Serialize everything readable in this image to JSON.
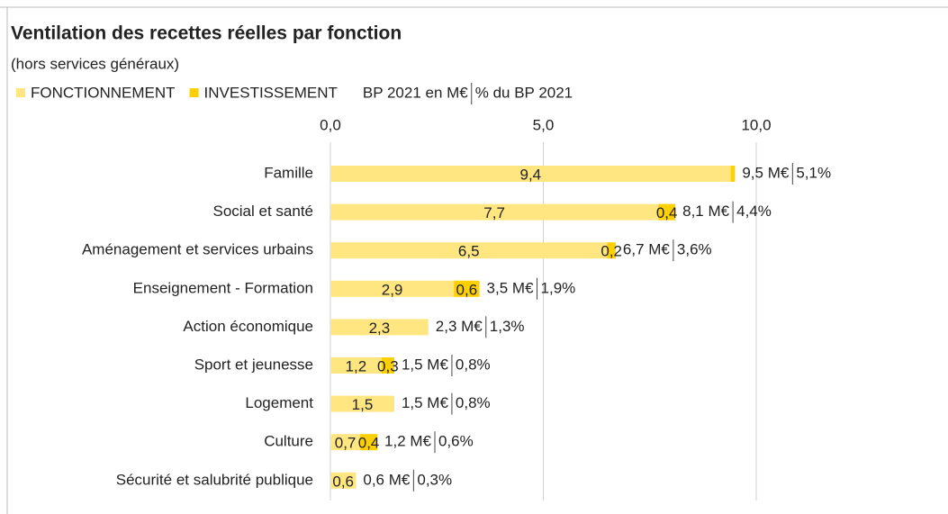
{
  "chart_data": {
    "type": "stacked-barh",
    "title": "Ventilation des recettes réelles par fonction",
    "subtitle": "(hors services généraux)",
    "legend_note": [
      "BP 2021 en M€",
      "% du BP 2021"
    ],
    "categories": [
      "Famille",
      "Social et santé",
      "Aménagement et services urbains",
      "Enseignement - Formation",
      "Action économique",
      "Sport et jeunesse",
      "Logement",
      "Culture",
      "Sécurité et salubrité publique"
    ],
    "series": [
      {
        "name": "FONCTIONNEMENT",
        "color": "#ffe680",
        "values": [
          9.4,
          7.7,
          6.5,
          2.9,
          2.3,
          1.2,
          1.5,
          0.7,
          0.6
        ],
        "value_labels": [
          "9,4",
          "7,7",
          "6,5",
          "2,9",
          "2,3",
          "1,2",
          "1,5",
          "0,7",
          "0,6"
        ]
      },
      {
        "name": "INVESTISSEMENT",
        "color": "#ffd000",
        "values": [
          0.1,
          0.4,
          0.2,
          0.6,
          null,
          0.3,
          null,
          0.4,
          null
        ],
        "value_labels": [
          null,
          "0,4",
          "0,2",
          "0,6",
          null,
          "0,3",
          null,
          "0,4",
          null
        ]
      }
    ],
    "totals": {
      "values": [
        9.5,
        8.1,
        6.7,
        3.5,
        2.3,
        1.5,
        1.5,
        1.2,
        0.6
      ],
      "value_labels": [
        "9,5 M€",
        "8,1 M€",
        "6,7 M€",
        "3,5 M€",
        "2,3 M€",
        "1,5 M€",
        "1,5 M€",
        "1,2 M€",
        "0,6 M€"
      ]
    },
    "shares": {
      "values": [
        5.1,
        4.4,
        3.6,
        1.9,
        1.3,
        0.8,
        0.8,
        0.6,
        0.3
      ],
      "value_labels": [
        "5,1%",
        "4,4%",
        "3,6%",
        "1,9%",
        "1,3%",
        "0,8%",
        "0,8%",
        "0,6%",
        "0,3%"
      ]
    },
    "xlim": [
      0,
      10
    ],
    "xticks": [
      {
        "value": 0,
        "label": "0,0"
      },
      {
        "value": 5,
        "label": "5,0"
      },
      {
        "value": 10,
        "label": "10,0"
      }
    ],
    "grid": true,
    "legend": "top-left"
  }
}
